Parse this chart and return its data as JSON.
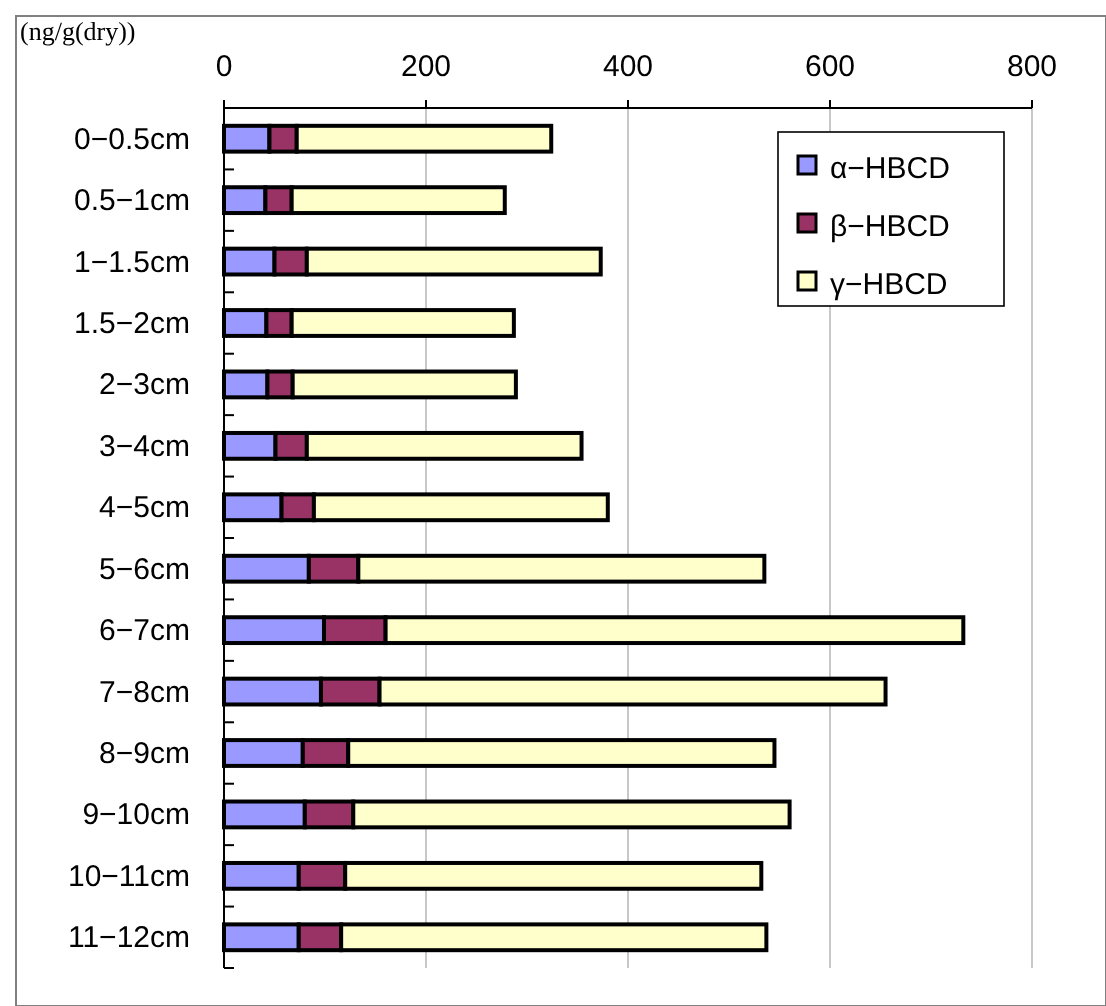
{
  "chart_data": {
    "type": "bar",
    "orientation": "horizontal",
    "stacked": true,
    "title": "(ng/g(dry))",
    "categories": [
      "0−0.5cm",
      "0.5−1cm",
      "1−1.5cm",
      "1.5−2cm",
      "2−3cm",
      "3−4cm",
      "4−5cm",
      "5−6cm",
      "6−7cm",
      "7−8cm",
      "8−9cm",
      "9−10cm",
      "10−11cm",
      "11−12cm"
    ],
    "series": [
      {
        "name": "α−HBCD",
        "color": "#9999ff",
        "values": [
          45,
          41,
          50,
          42,
          43,
          51,
          57,
          84,
          99,
          96,
          78,
          80,
          74,
          74
        ]
      },
      {
        "name": "β−HBCD",
        "color": "#993366",
        "values": [
          27,
          26,
          32,
          25,
          25,
          31,
          32,
          49,
          61,
          58,
          45,
          48,
          46,
          42
        ]
      },
      {
        "name": "γ−HBCD",
        "color": "#ffffcc",
        "values": [
          252,
          211,
          291,
          220,
          221,
          272,
          291,
          402,
          572,
          501,
          422,
          432,
          412,
          421
        ]
      }
    ],
    "xlim": [
      0,
      800
    ],
    "xticks": [
      0,
      200,
      400,
      600,
      800
    ],
    "grid": "x",
    "legend": "top right"
  }
}
